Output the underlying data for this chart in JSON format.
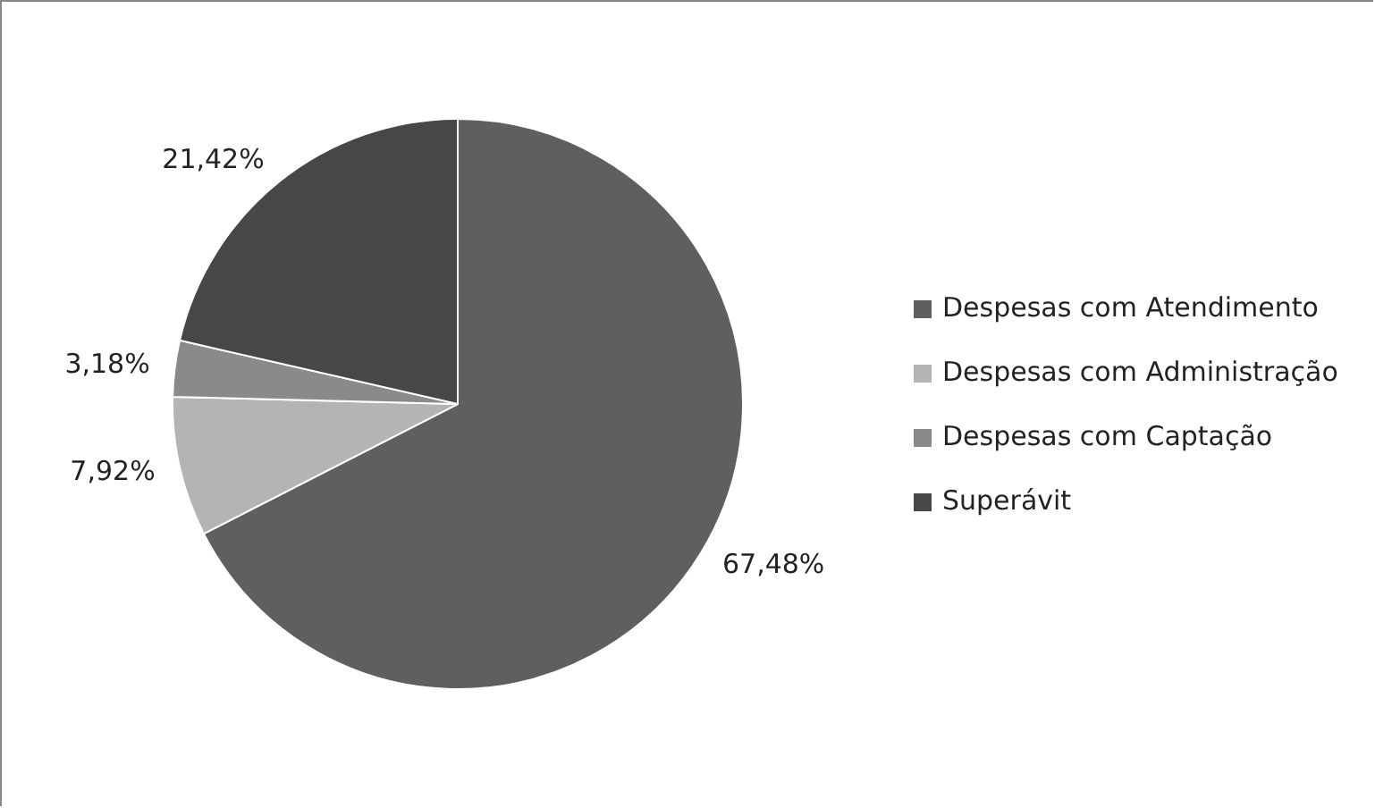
{
  "chart_data": {
    "type": "pie",
    "categories": [
      "Despesas com Atendimento",
      "Despesas com Administração",
      "Despesas com Captação",
      "Superávit"
    ],
    "values": [
      67.48,
      7.92,
      3.18,
      21.42
    ],
    "colors": [
      "#5f5f5f",
      "#b4b4b4",
      "#8a8a8a",
      "#474747"
    ],
    "value_labels": [
      "67,48%",
      "7,92%",
      "3,18%",
      "21,42%"
    ],
    "legend": "right"
  }
}
